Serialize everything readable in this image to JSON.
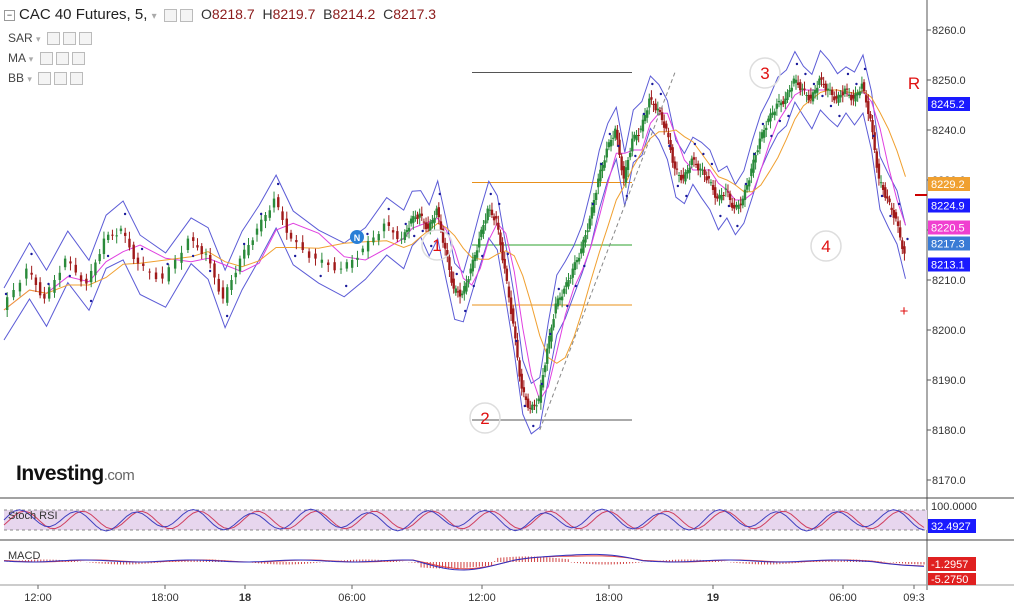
{
  "header": {
    "title": "CAC 40 Futures, 5,",
    "open_label": "O",
    "open": "8218.7",
    "high_label": "H",
    "high": "8219.7",
    "low_label": "B",
    "low": "8214.2",
    "close_label": "C",
    "close": "8217.3"
  },
  "indicators": [
    {
      "label": "SAR"
    },
    {
      "label": "MA"
    },
    {
      "label": "BB"
    }
  ],
  "logo": {
    "text": "Investing",
    "suffix": ".com"
  },
  "chart_data": {
    "type": "line",
    "y_ticks": [
      "8260.0",
      "8250.0",
      "8240.0",
      "8230.0",
      "8220.0",
      "8210.0",
      "8200.0",
      "8190.0",
      "8180.0",
      "8170.0"
    ],
    "ylim": [
      8167,
      8270
    ],
    "x_ticks": [
      "12:00",
      "18:00",
      "18",
      "06:00",
      "12:00",
      "18:00",
      "19",
      "06:00",
      "09:3"
    ],
    "price_path": [
      [
        0,
        8204
      ],
      [
        6,
        8212
      ],
      [
        10,
        8206
      ],
      [
        15,
        8214
      ],
      [
        20,
        8209
      ],
      [
        24,
        8218
      ],
      [
        28,
        8220
      ],
      [
        32,
        8213
      ],
      [
        38,
        8210
      ],
      [
        44,
        8218
      ],
      [
        48,
        8215
      ],
      [
        52,
        8206
      ],
      [
        56,
        8214
      ],
      [
        60,
        8220
      ],
      [
        64,
        8226
      ],
      [
        68,
        8218
      ],
      [
        74,
        8214
      ],
      [
        80,
        8212
      ],
      [
        85,
        8216
      ],
      [
        90,
        8221
      ],
      [
        94,
        8218
      ],
      [
        96,
        8222
      ],
      [
        98,
        8223
      ],
      [
        100,
        8220
      ],
      [
        102,
        8224
      ],
      [
        104,
        8216
      ],
      [
        106,
        8208
      ],
      [
        108,
        8207
      ],
      [
        110,
        8212
      ],
      [
        112,
        8218
      ],
      [
        114,
        8224
      ],
      [
        116,
        8222
      ],
      [
        118,
        8212
      ],
      [
        120,
        8201
      ],
      [
        122,
        8188
      ],
      [
        124,
        8184
      ],
      [
        126,
        8186
      ],
      [
        128,
        8196
      ],
      [
        130,
        8205
      ],
      [
        132,
        8208
      ],
      [
        134,
        8212
      ],
      [
        136,
        8216
      ],
      [
        138,
        8222
      ],
      [
        140,
        8230
      ],
      [
        142,
        8236
      ],
      [
        144,
        8240
      ],
      [
        146,
        8230
      ],
      [
        148,
        8238
      ],
      [
        150,
        8240
      ],
      [
        152,
        8246
      ],
      [
        154,
        8244
      ],
      [
        156,
        8240
      ],
      [
        158,
        8232
      ],
      [
        160,
        8230
      ],
      [
        162,
        8234
      ],
      [
        164,
        8232
      ],
      [
        166,
        8230
      ],
      [
        168,
        8226
      ],
      [
        170,
        8228
      ],
      [
        172,
        8224
      ],
      [
        174,
        8226
      ],
      [
        176,
        8232
      ],
      [
        178,
        8238
      ],
      [
        180,
        8242
      ],
      [
        182,
        8245
      ],
      [
        184,
        8246
      ],
      [
        186,
        8250
      ],
      [
        188,
        8248
      ],
      [
        190,
        8246
      ],
      [
        192,
        8250
      ],
      [
        194,
        8248
      ],
      [
        196,
        8246
      ],
      [
        198,
        8248
      ],
      [
        200,
        8246
      ],
      [
        202,
        8249
      ],
      [
        204,
        8242
      ],
      [
        206,
        8230
      ],
      [
        208,
        8226
      ],
      [
        210,
        8222
      ],
      [
        212,
        8215
      ]
    ],
    "levels": [
      {
        "value": "8251.5",
        "color": "#555555"
      },
      {
        "value": "8229.5",
        "color": "#e8901a"
      },
      {
        "value": "8217.0",
        "color": "#2ea02e"
      },
      {
        "value": "8205.0",
        "color": "#e8901a"
      },
      {
        "value": "8182.0",
        "color": "#555555"
      }
    ],
    "price_labels": [
      {
        "text": "8245.2",
        "value": 8245.2,
        "bg": "#1a1aff"
      },
      {
        "text": "8229.2",
        "value": 8229.2,
        "bg": "#f0a030"
      },
      {
        "text": "8224.9",
        "value": 8224.9,
        "bg": "#1a1aff"
      },
      {
        "text": "8220.5",
        "value": 8220.5,
        "bg": "#f040d0"
      },
      {
        "text": "8217.3",
        "value": 8217.3,
        "bg": "#3a7bd5"
      },
      {
        "text": "8213.1",
        "value": 8213.1,
        "bg": "#1a1aff"
      }
    ],
    "annotations": [
      "1",
      "2",
      "3",
      "4",
      "R",
      "N"
    ],
    "stoch_rsi": {
      "label": "Stoch RSI",
      "value": "32.4927",
      "value_bg": "#1a1aff",
      "ytick": "100.0000"
    },
    "macd": {
      "label": "MACD",
      "values": [
        "-1.2957",
        "-5.2750"
      ],
      "value_bg": "#e02020"
    },
    "colors": {
      "bull": "#2a8a3a",
      "bear": "#a01a1a",
      "bb": "#5b5bd6",
      "ma_fast": "#e040e0",
      "ma_slow": "#f0a030",
      "sar": "#1a1a9a"
    }
  }
}
